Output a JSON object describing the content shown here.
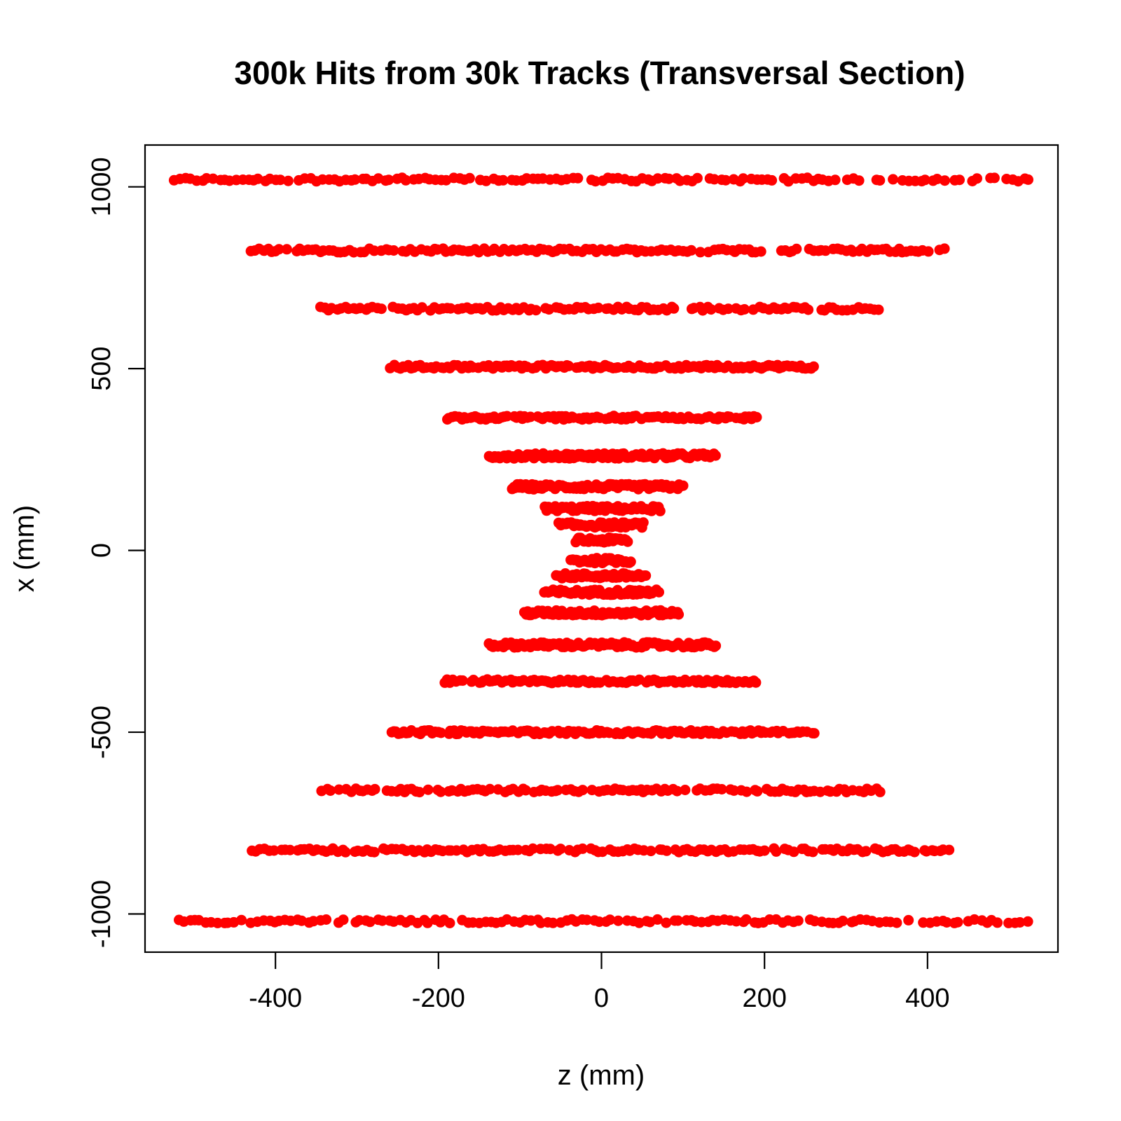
{
  "chart_data": {
    "type": "scatter",
    "title": "300k Hits from 30k Tracks (Transversal Section)",
    "xlabel": "z (mm)",
    "ylabel": "x (mm)",
    "xlim": [
      -560,
      560
    ],
    "ylim": [
      -1105,
      1115
    ],
    "xticks": [
      -400,
      -200,
      0,
      200,
      400
    ],
    "yticks": [
      -1000,
      -500,
      0,
      500,
      1000
    ],
    "grid": false,
    "legend": "none",
    "point_color": "#ff0000",
    "series": [
      {
        "layers": [
          {
            "x": 1020,
            "zmin": -525,
            "zmax": 525
          },
          {
            "x": 825,
            "zmin": -430,
            "zmax": 420
          },
          {
            "x": 665,
            "zmin": -345,
            "zmax": 340
          },
          {
            "x": 505,
            "zmin": -260,
            "zmax": 260
          },
          {
            "x": 365,
            "zmin": -190,
            "zmax": 190
          },
          {
            "x": 260,
            "zmin": -138,
            "zmax": 140
          },
          {
            "x": 175,
            "zmin": -110,
            "zmax": 100
          },
          {
            "x": 115,
            "zmin": -70,
            "zmax": 72
          },
          {
            "x": 70,
            "zmin": -52,
            "zmax": 52
          },
          {
            "x": 28,
            "zmin": -32,
            "zmax": 32
          },
          {
            "x": -28,
            "zmin": -38,
            "zmax": 36
          },
          {
            "x": -70,
            "zmin": -55,
            "zmax": 55
          },
          {
            "x": -115,
            "zmin": -70,
            "zmax": 70
          },
          {
            "x": -172,
            "zmin": -95,
            "zmax": 95
          },
          {
            "x": -260,
            "zmin": -138,
            "zmax": 140
          },
          {
            "x": -360,
            "zmin": -192,
            "zmax": 190
          },
          {
            "x": -500,
            "zmin": -258,
            "zmax": 262
          },
          {
            "x": -660,
            "zmin": -342,
            "zmax": 342
          },
          {
            "x": -825,
            "zmin": -428,
            "zmax": 430
          },
          {
            "x": -1020,
            "zmin": -520,
            "zmax": 522
          }
        ]
      }
    ]
  }
}
